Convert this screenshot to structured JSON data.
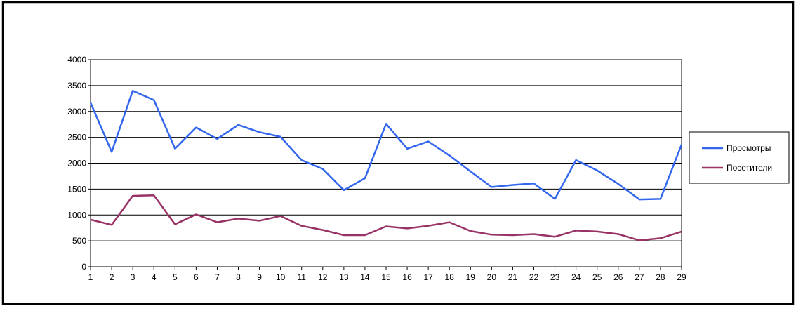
{
  "chart_data": {
    "type": "line",
    "title": "",
    "xlabel": "",
    "ylabel": "",
    "x": [
      1,
      2,
      3,
      4,
      5,
      6,
      7,
      8,
      9,
      10,
      11,
      12,
      13,
      14,
      15,
      16,
      17,
      18,
      19,
      20,
      21,
      22,
      23,
      24,
      25,
      26,
      27,
      28,
      29
    ],
    "ylim": [
      0,
      4000
    ],
    "yticks": [
      0,
      500,
      1000,
      1500,
      2000,
      2500,
      3000,
      3500,
      4000
    ],
    "grid": "horizontal",
    "legend_position": "right",
    "series": [
      {
        "name": "Просмотры",
        "color": "#3366ee",
        "values": [
          3170,
          2220,
          3400,
          3220,
          2280,
          2690,
          2470,
          2740,
          2600,
          2510,
          2060,
          1890,
          1480,
          1710,
          2760,
          2280,
          2420,
          2150,
          1840,
          1540,
          1580,
          1610,
          1310,
          2060,
          1860,
          1600,
          1300,
          1310,
          2360
        ]
      },
      {
        "name": "Посетители",
        "color": "#993366",
        "values": [
          910,
          810,
          1370,
          1380,
          820,
          1010,
          860,
          930,
          890,
          980,
          790,
          710,
          610,
          610,
          780,
          740,
          790,
          860,
          690,
          620,
          610,
          630,
          580,
          700,
          680,
          630,
          510,
          550,
          680
        ]
      }
    ]
  }
}
